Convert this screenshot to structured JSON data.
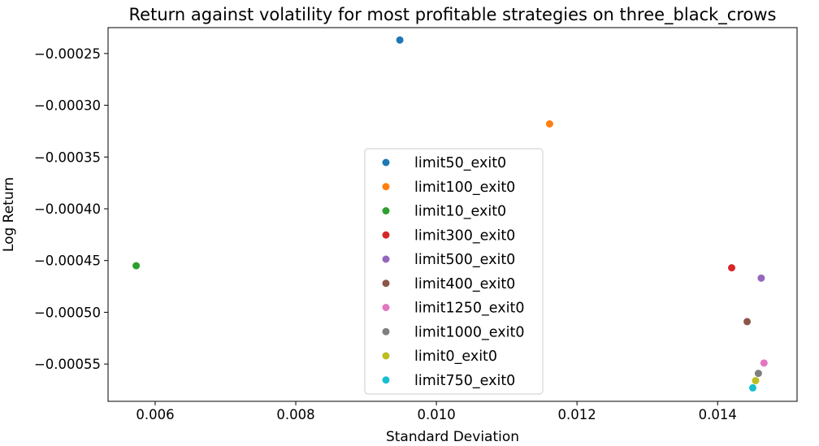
{
  "chart_data": {
    "type": "scatter",
    "title": "Return against volatility for most profitable strategies on three_black_crows",
    "xlabel": "Standard Deviation",
    "ylabel": "Log Return",
    "xlim": [
      0.00533,
      0.01513
    ],
    "ylim": [
      -0.000586,
      -0.000225
    ],
    "xticks": [
      0.006,
      0.008,
      0.01,
      0.012,
      0.014
    ],
    "xtick_labels": [
      "0.006",
      "0.008",
      "0.010",
      "0.012",
      "0.014"
    ],
    "yticks": [
      -0.00025,
      -0.0003,
      -0.00035,
      -0.0004,
      -0.00045,
      -0.0005,
      -0.00055
    ],
    "ytick_labels": [
      "−0.00025",
      "−0.00030",
      "−0.00035",
      "−0.00040",
      "−0.00045",
      "−0.00050",
      "−0.00055"
    ],
    "grid": false,
    "legend_position": "center",
    "series": [
      {
        "name": "limit50_exit0",
        "color": "#1f77b4",
        "x": 0.00948,
        "y": -0.000237
      },
      {
        "name": "limit100_exit0",
        "color": "#ff7f0e",
        "x": 0.01161,
        "y": -0.000318
      },
      {
        "name": "limit10_exit0",
        "color": "#2ca02c",
        "x": 0.00573,
        "y": -0.000455
      },
      {
        "name": "limit300_exit0",
        "color": "#d62728",
        "x": 0.0142,
        "y": -0.000457
      },
      {
        "name": "limit500_exit0",
        "color": "#9467bd",
        "x": 0.01462,
        "y": -0.000467
      },
      {
        "name": "limit400_exit0",
        "color": "#8c564b",
        "x": 0.01442,
        "y": -0.000509
      },
      {
        "name": "limit1250_exit0",
        "color": "#e377c2",
        "x": 0.01466,
        "y": -0.000549
      },
      {
        "name": "limit1000_exit0",
        "color": "#7f7f7f",
        "x": 0.01458,
        "y": -0.000559
      },
      {
        "name": "limit0_exit0",
        "color": "#bcbd22",
        "x": 0.01454,
        "y": -0.000566
      },
      {
        "name": "limit750_exit0",
        "color": "#17becf",
        "x": 0.0145,
        "y": -0.000573
      }
    ]
  }
}
